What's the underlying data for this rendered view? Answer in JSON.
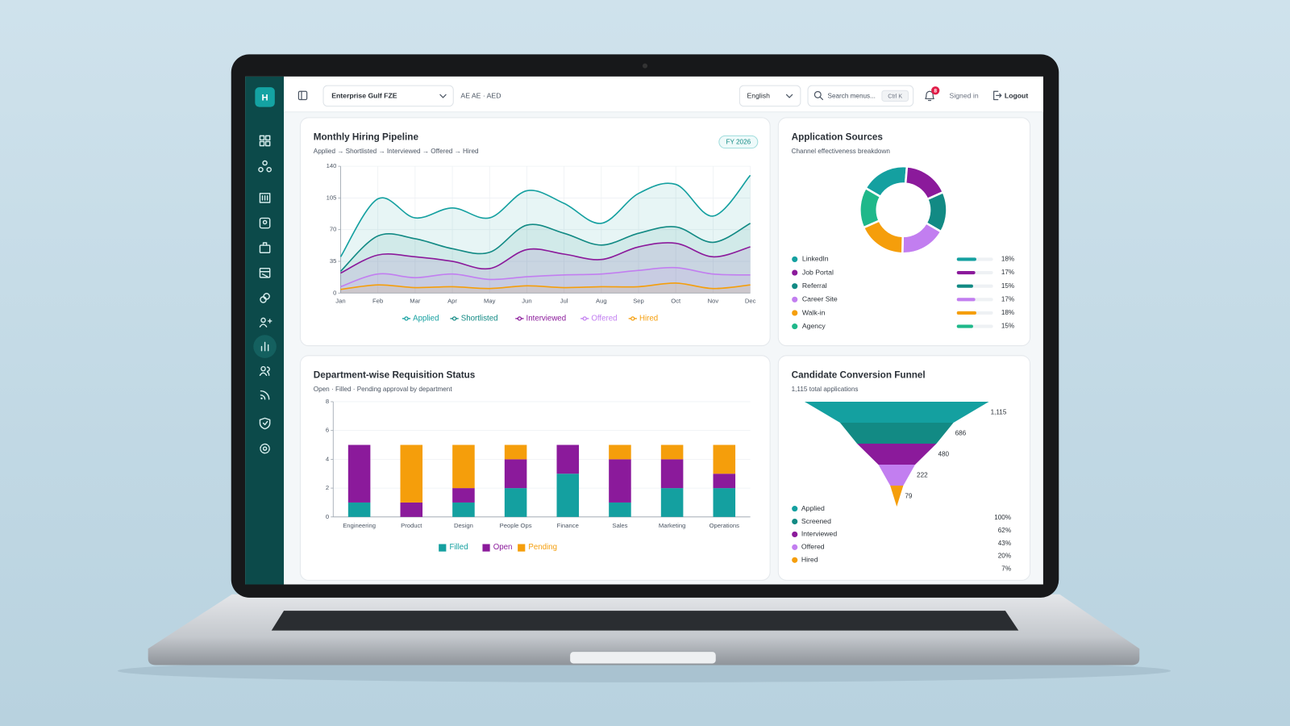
{
  "header": {
    "brand": "H",
    "organization": "Enterprise Gulf FZE",
    "locale": "AE AE · AED",
    "language": "English",
    "search_placeholder": "Search menus...",
    "search_shortcut": "Ctrl K",
    "notifications": 8,
    "status": "Signed in",
    "logout": "Logout"
  },
  "chart_data": [
    {
      "type": "area",
      "title": "Monthly Hiring Pipeline",
      "subtitle": "Applied → Shortlisted → Interviewed → Offered → Hired",
      "badge": "FY 2026",
      "categories": [
        "Jan",
        "Feb",
        "Mar",
        "Apr",
        "May",
        "Jun",
        "Jul",
        "Aug",
        "Sep",
        "Oct",
        "Nov",
        "Dec"
      ],
      "ylim": [
        0,
        140
      ],
      "yticks": [
        0,
        35,
        70,
        105,
        140
      ],
      "grid": true,
      "series": [
        {
          "name": "Applied",
          "color": "#14a0a0",
          "values": [
            40,
            104,
            83,
            94,
            83,
            113,
            99,
            77,
            110,
            120,
            85,
            130
          ]
        },
        {
          "name": "Shortlisted",
          "color": "#128a84",
          "values": [
            24,
            63,
            60,
            49,
            45,
            75,
            66,
            53,
            66,
            73,
            56,
            77
          ]
        },
        {
          "name": "Interviewed",
          "color": "#8b1a9b",
          "values": [
            22,
            42,
            40,
            35,
            27,
            48,
            43,
            37,
            51,
            55,
            40,
            51
          ]
        },
        {
          "name": "Offered",
          "color": "#c27ef0",
          "values": [
            7,
            21,
            17,
            21,
            15,
            18,
            20,
            21,
            25,
            28,
            21,
            20
          ]
        },
        {
          "name": "Hired",
          "color": "#f59e0b",
          "values": [
            4,
            9,
            6,
            7,
            5,
            8,
            6,
            7,
            7,
            11,
            5,
            9
          ]
        }
      ]
    },
    {
      "type": "donut",
      "title": "Application Sources",
      "subtitle": "Channel effectiveness breakdown",
      "categories": [
        "LinkedIn",
        "Job Portal",
        "Referral",
        "Career Site",
        "Walk-in",
        "Agency"
      ],
      "values": [
        18,
        17,
        15,
        17,
        18,
        15
      ],
      "value_labels": [
        "18%",
        "17%",
        "15%",
        "17%",
        "18%",
        "15%"
      ],
      "colors": [
        "#14a0a0",
        "#8b1a9b",
        "#128a84",
        "#c27ef0",
        "#f59e0b",
        "#1fb88a"
      ]
    },
    {
      "type": "bar",
      "stacked": true,
      "title": "Department-wise Requisition Status",
      "subtitle": "Open · Filled · Pending approval by department",
      "categories": [
        "Engineering",
        "Product",
        "Design",
        "People Ops",
        "Finance",
        "Sales",
        "Marketing",
        "Operations"
      ],
      "ylim": [
        0,
        8
      ],
      "yticks": [
        0,
        2,
        4,
        6,
        8
      ],
      "grid": true,
      "series": [
        {
          "name": "Filled",
          "color": "#14a0a0",
          "values": [
            1,
            0,
            1,
            2,
            3,
            1,
            2,
            2
          ]
        },
        {
          "name": "Open",
          "color": "#8b1a9b",
          "values": [
            4,
            1,
            1,
            2,
            2,
            3,
            2,
            1
          ]
        },
        {
          "name": "Pending",
          "color": "#f59e0b",
          "values": [
            0,
            4,
            3,
            1,
            0,
            1,
            1,
            2
          ]
        }
      ]
    },
    {
      "type": "funnel",
      "title": "Candidate Conversion Funnel",
      "subtitle": "1,115 total applications",
      "categories": [
        "Applied",
        "Screened",
        "Interviewed",
        "Offered",
        "Hired"
      ],
      "values": [
        1115,
        686,
        480,
        222,
        79
      ],
      "value_labels": [
        "1,115",
        "686",
        "480",
        "222",
        "79"
      ],
      "shares": [
        "100%",
        "62%",
        "43%",
        "20%",
        "7%"
      ],
      "colors": [
        "#14a0a0",
        "#128a84",
        "#8b1a9b",
        "#c27ef0",
        "#f59e0b"
      ]
    }
  ]
}
